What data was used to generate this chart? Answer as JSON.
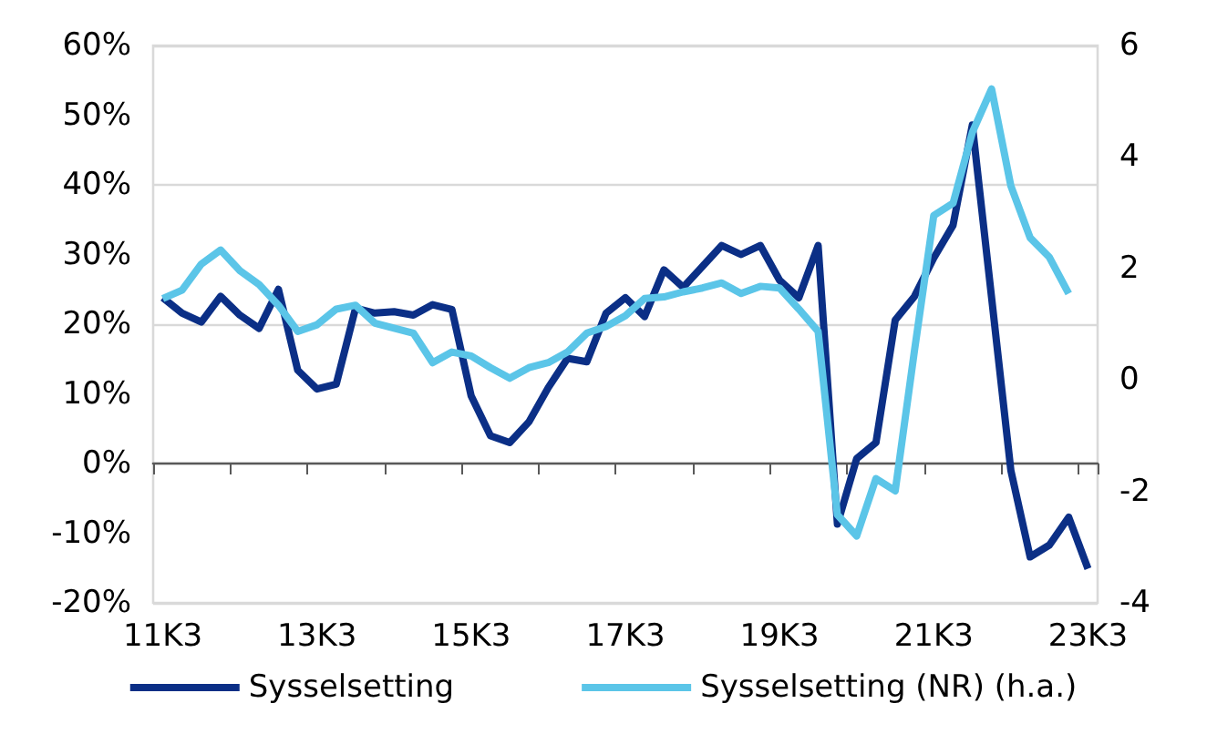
{
  "chart_data": {
    "type": "line",
    "categories": [
      "11K3",
      null,
      null,
      null,
      null,
      null,
      null,
      null,
      "13K3",
      null,
      null,
      null,
      null,
      null,
      null,
      null,
      "15K3",
      null,
      null,
      null,
      null,
      null,
      null,
      null,
      "17K3",
      null,
      null,
      null,
      null,
      null,
      null,
      null,
      "19K3",
      null,
      null,
      null,
      null,
      null,
      null,
      null,
      "21K3",
      null,
      null,
      null,
      null,
      null,
      null,
      null,
      "23K3"
    ],
    "series": [
      {
        "name": "Sysselsetting",
        "color": "#0b2f86",
        "values": [
          23.8,
          21.6,
          20.3,
          24,
          21.3,
          19.4,
          25,
          13.4,
          10.7,
          11.4,
          22.3,
          21.6,
          21.8,
          21.3,
          22.8,
          22.1,
          9.7,
          4,
          3,
          6,
          10.9,
          15.1,
          14.6,
          21.6,
          23.8,
          21.1,
          27.8,
          25.3,
          28.3,
          31.3,
          30,
          31.3,
          26.3,
          23.8,
          31.3,
          -8.7,
          0.7,
          3,
          20.6,
          24,
          29.5,
          34.2,
          48.6,
          23.8,
          -1,
          -13.4,
          -11.7,
          -7.7,
          -15.1
        ]
      },
      {
        "name": "Sysselsetting (NR) (h.a.)",
        "color": "#5bc5e8",
        "axis": "y2",
        "values": [
          1.46,
          1.61,
          2.08,
          2.33,
          1.96,
          1.71,
          1.34,
          0.87,
          0.99,
          1.27,
          1.34,
          1.02,
          0.93,
          0.84,
          0.31,
          0.5,
          0.43,
          0.22,
          0.03,
          0.22,
          0.31,
          0.5,
          0.84,
          0.96,
          1.15,
          1.46,
          1.49,
          1.58,
          1.65,
          1.74,
          1.55,
          1.68,
          1.65,
          1.27,
          0.87,
          -2.42,
          -2.8,
          -1.77,
          -1.99,
          0.53,
          2.95,
          3.17,
          4.44,
          5.22,
          3.48,
          2.55,
          2.2,
          1.55,
          null
        ]
      }
    ],
    "ylim": [
      -20,
      60
    ],
    "yticks": [
      {
        "value": -20,
        "label": "-20%"
      },
      {
        "value": -10,
        "label": "-10%"
      },
      {
        "value": 0,
        "label": "0%"
      },
      {
        "value": 10,
        "label": "10%"
      },
      {
        "value": 20,
        "label": "20%"
      },
      {
        "value": 30,
        "label": "30%"
      },
      {
        "value": 40,
        "label": "40%"
      },
      {
        "value": 50,
        "label": "50%"
      },
      {
        "value": 60,
        "label": "60%"
      }
    ],
    "y2lim": [
      -4,
      6
    ],
    "y2ticks": [
      -4,
      -2,
      0,
      2,
      4,
      6
    ],
    "grid": "y",
    "legend": "bottom",
    "marker": "none",
    "line_style": "solid"
  }
}
